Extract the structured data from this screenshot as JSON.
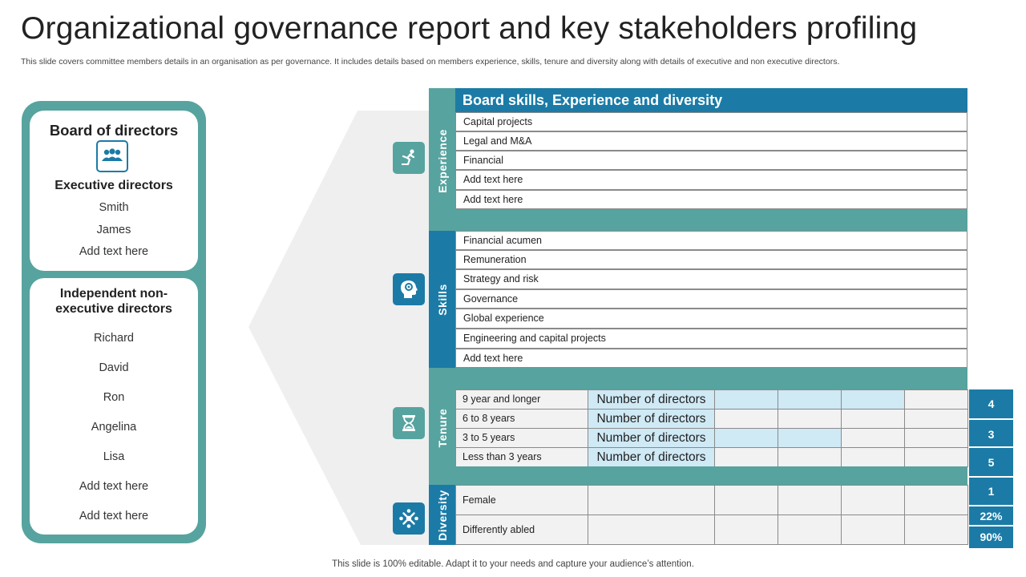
{
  "title": "Organizational governance report and key stakeholders profiling",
  "subtitle": "This slide covers committee members details in an organisation as per governance. It includes details based on members experience, skills, tenure and diversity along with details of executive and non executive directors.",
  "footer": "This slide is 100% editable. Adapt it to your needs and capture your audience’s attention.",
  "board": {
    "title": "Board of directors",
    "icon": "people-group-icon",
    "executive_title": "Executive directors",
    "executive": [
      "Smith",
      "James",
      "Add text here"
    ],
    "independent_title_line1": "Independent non-",
    "independent_title_line2": "executive directors",
    "independent": [
      "Richard",
      "David",
      "Ron",
      "Angelina",
      "Lisa",
      "Add text here",
      "Add text here"
    ]
  },
  "matrix": {
    "header": "Board skills, Experience and diversity",
    "experience_label": "Experience",
    "experience": [
      "Capital projects",
      "Legal and M&A",
      "Financial",
      "Add text here",
      "Add text here"
    ],
    "skills_label": "Skills",
    "skills": [
      "Financial acumen",
      "Remuneration",
      "Strategy and risk",
      "Governance",
      "Global experience",
      "Engineering and capital projects",
      "Add text here"
    ],
    "tenure_label": "Tenure",
    "tenure": [
      {
        "label": "9 year and longer",
        "value": "Number of directors",
        "filled": 4
      },
      {
        "label": "6 to 8 years",
        "value": "Number of directors",
        "filled": 1
      },
      {
        "label": "3 to 5 years",
        "value": "Number of directors",
        "filled": 3
      },
      {
        "label": "Less than 3 years",
        "value": "Number of directors",
        "filled": 1
      }
    ],
    "diversity_label": "Diversity",
    "diversity": [
      "Female",
      "Differently abled"
    ],
    "scores": [
      "4",
      "3",
      "5",
      "1",
      "22%",
      "90%"
    ]
  },
  "colors": {
    "teal": "#57a39f",
    "blue": "#1b7ba6",
    "light_blue": "#cfe9f5",
    "cell_gray": "#f2f2f2"
  },
  "icons": {
    "experience": "climbing-figure-icon",
    "skills": "head-gear-icon",
    "tenure": "hourglass-icon",
    "diversity": "people-circle-icon"
  }
}
